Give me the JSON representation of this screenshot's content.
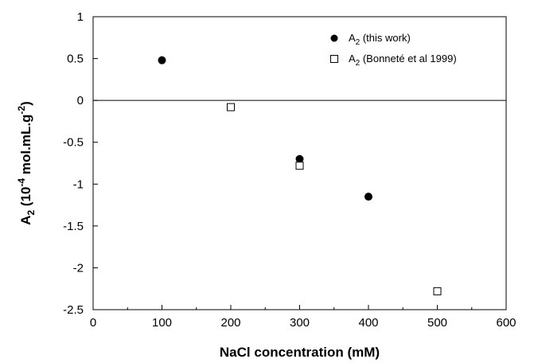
{
  "chart_data": {
    "type": "scatter",
    "xlabel": "NaCl concentration (mM)",
    "ylabel": "A",
    "ylabel_parts": {
      "sub": "2",
      "unit_prefix": " (10",
      "exp1": "-4",
      "unit_mid": " mol.mL.g",
      "exp2": "-2",
      "unit_suffix": ")"
    },
    "xlim": [
      0,
      600
    ],
    "ylim": [
      -2.5,
      1
    ],
    "x_ticks": [
      0,
      100,
      200,
      300,
      400,
      500,
      600
    ],
    "x_tick_labels": [
      "0",
      "100",
      "200",
      "300",
      "400",
      "500",
      "600"
    ],
    "y_ticks": [
      1,
      0.5,
      0,
      -0.5,
      -1,
      -1.5,
      -2,
      -2.5
    ],
    "y_tick_labels": [
      "1",
      "0.5",
      "0",
      "-0.5",
      "-1",
      "-1.5",
      "-2",
      "-2.5"
    ],
    "zero_line": true,
    "grid": false,
    "legend_position": "top-right",
    "series": [
      {
        "name": "A",
        "name_sub": "2",
        "name_suffix": " (this work)",
        "marker": "filled-circle",
        "color": "#000000",
        "x": [
          100,
          300,
          400
        ],
        "y": [
          0.48,
          -0.7,
          -1.15
        ]
      },
      {
        "name": "A",
        "name_sub": "2",
        "name_suffix": " (Bonneté et al 1999)",
        "marker": "open-square",
        "color": "#000000",
        "x": [
          200,
          300,
          500
        ],
        "y": [
          -0.08,
          -0.78,
          -2.28
        ]
      }
    ]
  }
}
